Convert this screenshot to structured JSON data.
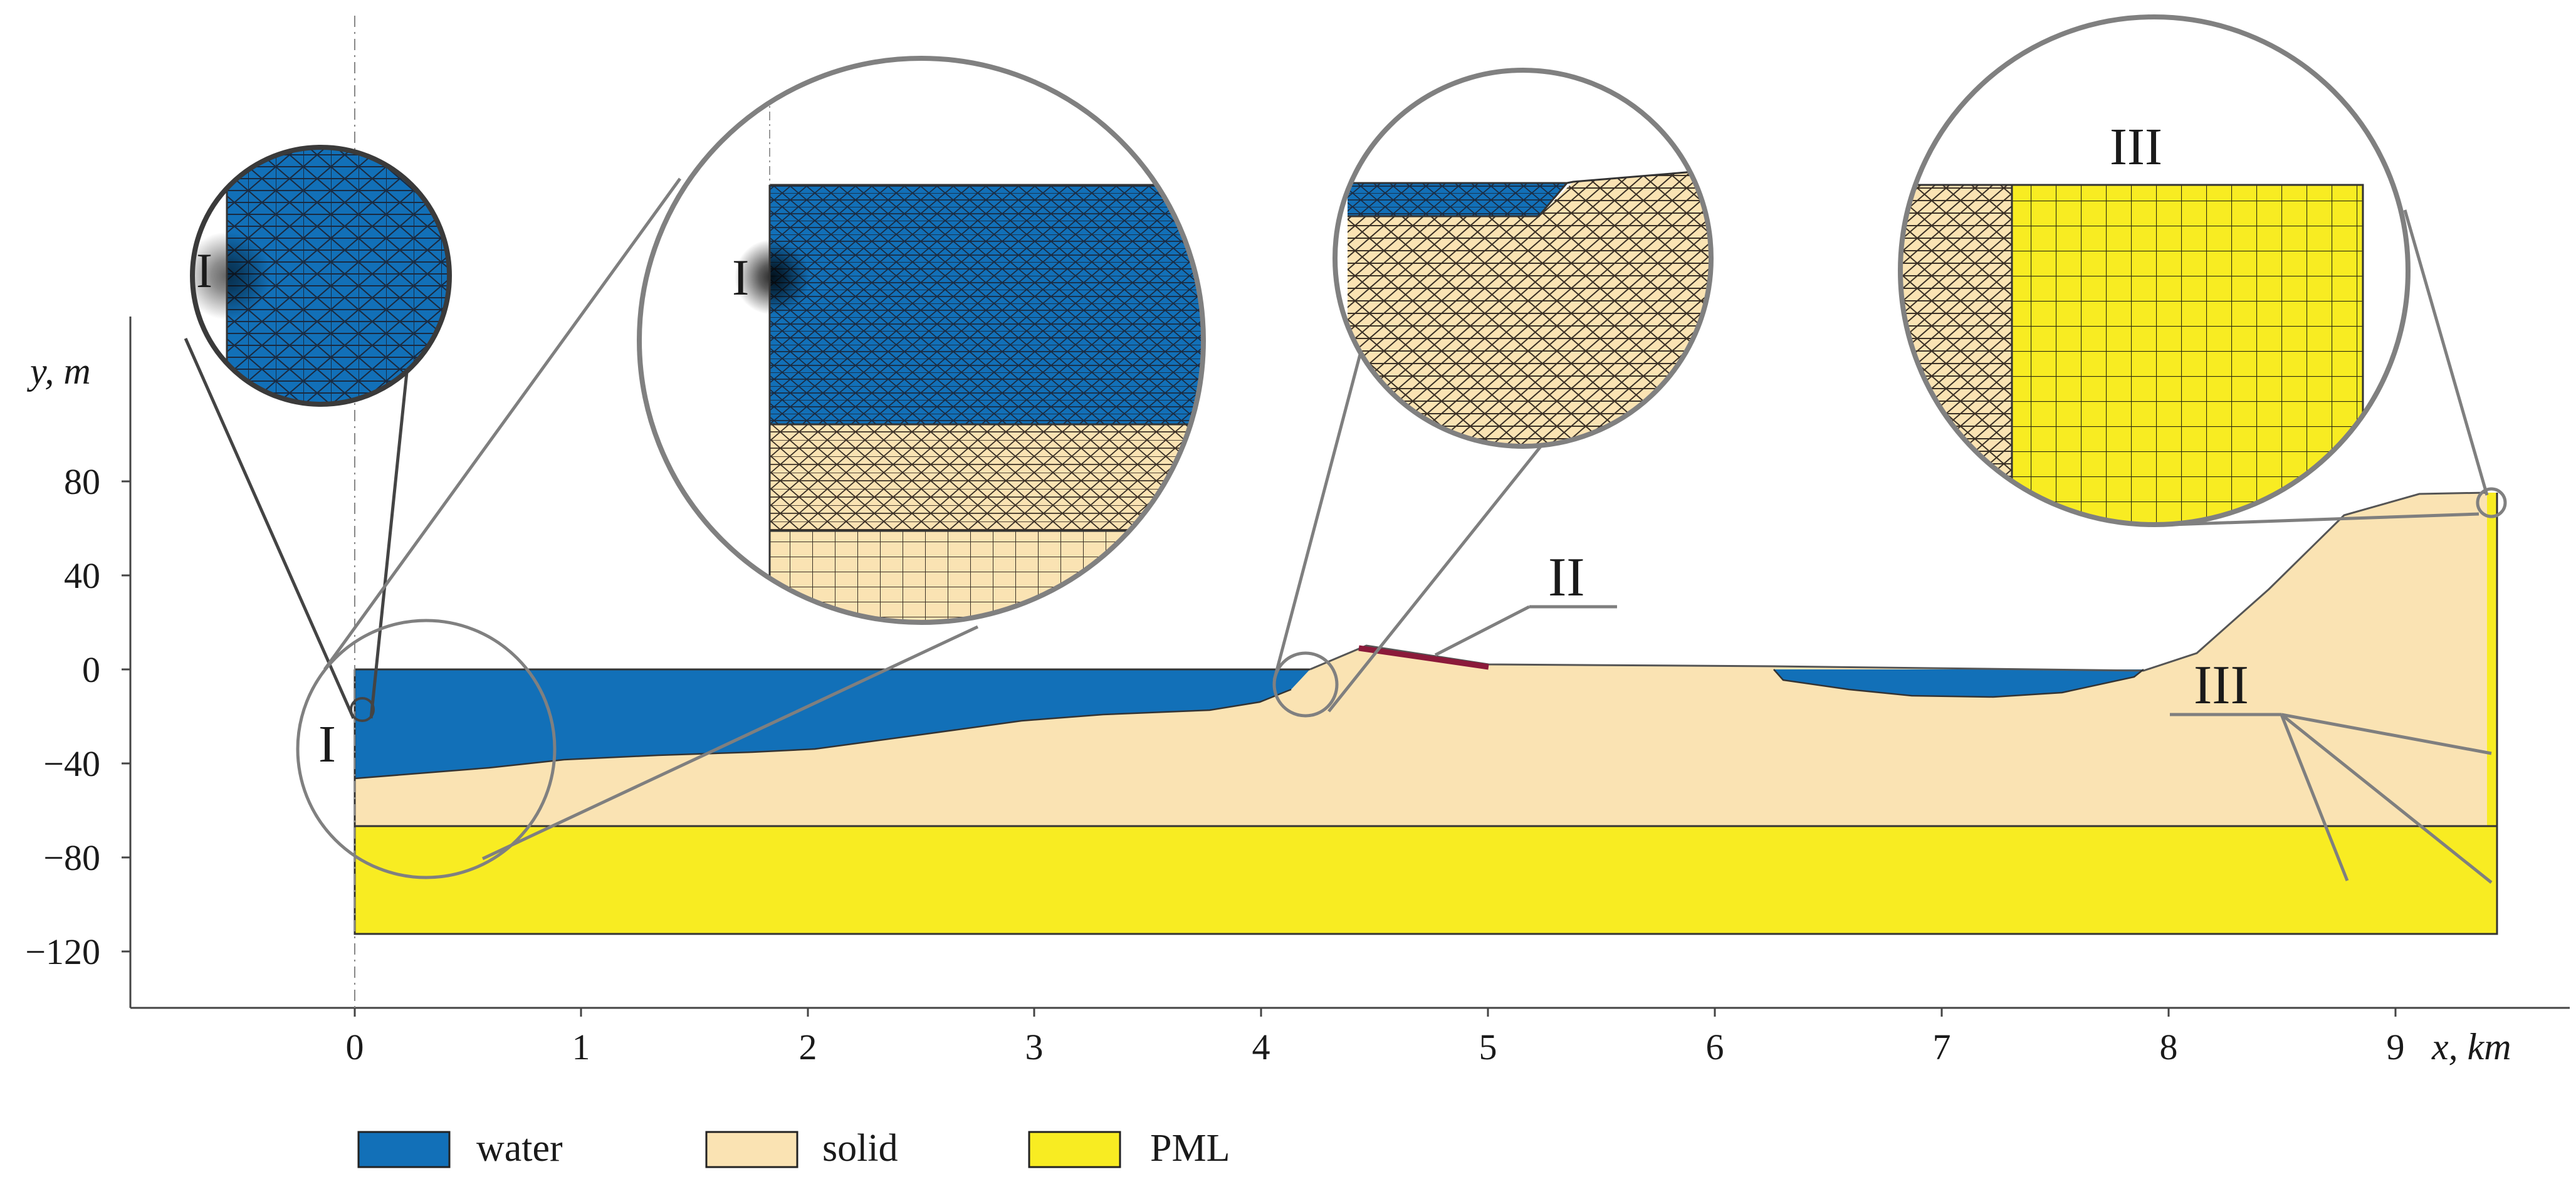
{
  "axes": {
    "y_title": "y, m",
    "x_title": "x, km",
    "y_ticks": [
      "80",
      "40",
      "0",
      "−40",
      "−80",
      "−120"
    ],
    "x_ticks": [
      "0",
      "1",
      "2",
      "3",
      "4",
      "5",
      "6",
      "7",
      "8",
      "9"
    ]
  },
  "labels": {
    "zone1": "I",
    "zone2": "II",
    "zone3": "III"
  },
  "legend": [
    {
      "label": "water",
      "color": "#1270b8"
    },
    {
      "label": "solid",
      "color": "#fae3b3"
    },
    {
      "label": "PML",
      "color": "#f8ec22"
    }
  ],
  "colors": {
    "water": "#1270b8",
    "solid": "#fae3b3",
    "pml": "#f8ec22",
    "receiver_line": "#8b1a3a",
    "callout": "#7f7f7f"
  }
}
